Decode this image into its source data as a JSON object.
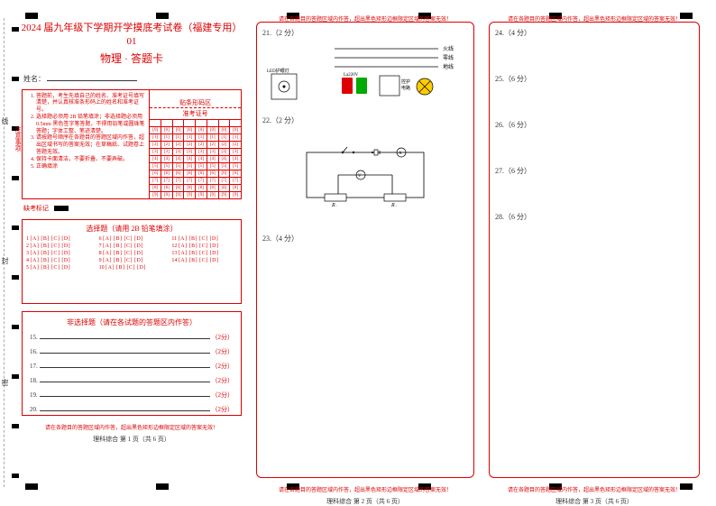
{
  "header": {
    "title": "2024 届九年级下学期开学摸底考试卷（福建专用）01",
    "subtitle": "物理 · 答题卡"
  },
  "name_label": "姓名：",
  "instructions": {
    "label": "注意事项",
    "items": [
      "答题前，考生先填自己的姓名、准考证号填写清楚，并认真核准条形码上的姓名和准考证号。",
      "选择题必须用 2B 铅笔填涂；非选择题必须用 0.5mm 黑色签字笔答题，不得用铅笔或圆珠笔答题；字体工整、笔迹清楚。",
      "请按题号顺序在各题目的答题区域内作答，超出区域书写的答案无效；在草稿纸、试题卷上答题无效。",
      "保持卡面清洁，不要折叠、不要弄破。",
      "正确填涂"
    ]
  },
  "barcode_label": "贴条形码区",
  "ticket_label": "准考证号",
  "digits": [
    "0",
    "1",
    "2",
    "3",
    "4",
    "5",
    "6",
    "7",
    "8",
    "9"
  ],
  "fill_mark_label": "缺考标记",
  "mc": {
    "title": "选择题（请用 2B 铅笔填涂）",
    "options": "[A] [B] [C] [D]",
    "rows": [
      [
        "1",
        "2",
        "3",
        "4",
        "5"
      ],
      [
        "6",
        "7",
        "8",
        "9",
        "10"
      ],
      [
        "11",
        "12",
        "13",
        "14",
        ""
      ]
    ]
  },
  "free": {
    "title": "非选择题（请在各试题的答题区内作答）",
    "items": [
      {
        "n": "15.",
        "p": "（2分）"
      },
      {
        "n": "16.",
        "p": "（2分）"
      },
      {
        "n": "17.",
        "p": "（2分）"
      },
      {
        "n": "18.",
        "p": "（2分）"
      },
      {
        "n": "19.",
        "p": "（2分）"
      },
      {
        "n": "20.",
        "p": "（2分）"
      }
    ]
  },
  "warning": "请在各题目的答题区域内作答，超出黑色矩形边框限定区域的答案无效！",
  "page_labels": {
    "p1": "理科综合 第 1 页（共 6 页）",
    "p2": "理科综合 第 2 页（共 6 页）",
    "p3": "理科综合 第 3 页（共 6 页）"
  },
  "side_labels": {
    "l1": "线",
    "l2": "封",
    "l3": "密"
  },
  "p2": {
    "q21": {
      "label": "21.（2 分）",
      "labels": {
        "fire": "火线",
        "zero": "零线",
        "ground": "地线",
        "led": "LED护眼灯",
        "lamp": "La220V",
        "protect": "控护电路"
      }
    },
    "q22": {
      "label": "22.（2 分）",
      "r1": "R₁",
      "r2": "R₂"
    },
    "q23": {
      "label": "23.（4 分）"
    }
  },
  "p3": {
    "q24": {
      "label": "24.（4 分）"
    },
    "q25": {
      "label": "25.（6 分）"
    },
    "q26": {
      "label": "26.（6 分）"
    },
    "q27": {
      "label": "27.（6 分）"
    },
    "q28": {
      "label": "28.（6 分）"
    }
  },
  "colors": {
    "accent": "#d00",
    "text": "#333",
    "bg": "#ffffff"
  }
}
